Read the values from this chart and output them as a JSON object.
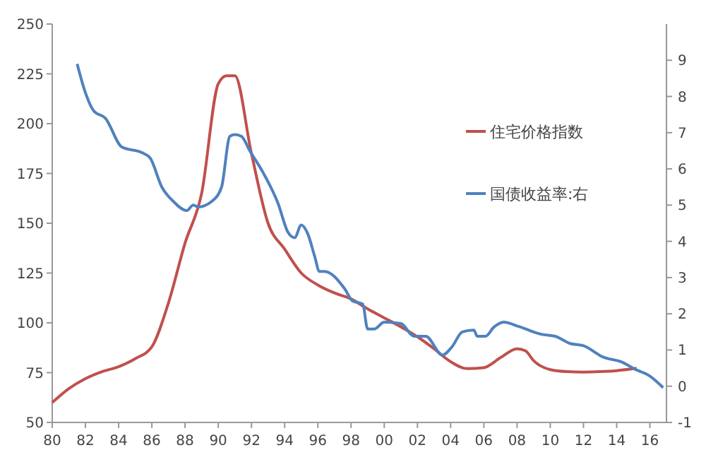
{
  "chart_data": {
    "type": "line",
    "xlim": [
      1980,
      2017
    ],
    "xticks": [
      {
        "value": 1980,
        "label": "80"
      },
      {
        "value": 1982,
        "label": "82"
      },
      {
        "value": 1984,
        "label": "84"
      },
      {
        "value": 1986,
        "label": "86"
      },
      {
        "value": 1988,
        "label": "88"
      },
      {
        "value": 1990,
        "label": "90"
      },
      {
        "value": 1992,
        "label": "92"
      },
      {
        "value": 1994,
        "label": "94"
      },
      {
        "value": 1996,
        "label": "96"
      },
      {
        "value": 1998,
        "label": "98"
      },
      {
        "value": 2000,
        "label": "00"
      },
      {
        "value": 2002,
        "label": "02"
      },
      {
        "value": 2004,
        "label": "04"
      },
      {
        "value": 2006,
        "label": "06"
      },
      {
        "value": 2008,
        "label": "08"
      },
      {
        "value": 2010,
        "label": "10"
      },
      {
        "value": 2012,
        "label": "12"
      },
      {
        "value": 2014,
        "label": "14"
      },
      {
        "value": 2016,
        "label": "16"
      }
    ],
    "ylim": [
      50,
      250
    ],
    "yticks": [
      50,
      75,
      100,
      125,
      150,
      175,
      200,
      225,
      250
    ],
    "y2lim": [
      -1,
      10
    ],
    "y2ticks": [
      -1,
      0,
      1,
      2,
      3,
      4,
      5,
      6,
      7,
      8,
      9
    ],
    "grid": false,
    "legend": "right",
    "marker": "none",
    "line_style": "solid",
    "series": [
      {
        "name": "住宅价格指数",
        "color": "#c0504d",
        "x": [
          1980,
          1981,
          1982,
          1983,
          1984,
          1985,
          1986,
          1987,
          1988,
          1989,
          1990,
          1990.5,
          1991,
          1992,
          1993,
          1994,
          1995,
          1996,
          1997,
          1998,
          1999,
          2000,
          2001,
          2002,
          2003,
          2004,
          2005,
          2006,
          2007,
          2008,
          2008.5,
          2009,
          2010,
          2011,
          2012,
          2013,
          2014,
          2015.2
        ],
        "values": [
          60,
          67,
          72,
          75.5,
          78,
          82,
          88,
          110,
          140,
          165,
          220,
          224,
          224,
          185,
          150,
          137,
          125,
          119,
          115,
          112,
          107,
          102.5,
          98,
          93,
          87,
          80.5,
          77,
          77.5,
          82.5,
          87,
          86,
          81,
          76.5,
          75.5,
          75.3,
          75.5,
          76,
          77.2
        ]
      },
      {
        "name": "国债收益率:右",
        "color": "#4f81bd",
        "axis": "y2",
        "x": [
          1981.5,
          1982,
          1982.5,
          1983.2,
          1984.2,
          1985.4,
          1985.9,
          1986.6,
          1987.3,
          1988.1,
          1988.5,
          1988.8,
          1989.6,
          1990.2,
          1990.7,
          1991,
          1991.4,
          1991.9,
          1992.7,
          1993.6,
          1994.2,
          1994.6,
          1995,
          1995.4,
          1995.8,
          1996.1,
          1996.4,
          1997.6,
          1998.1,
          1998.7,
          1999,
          1999.4,
          2000,
          2001,
          2001.8,
          2002.5,
          2003.5,
          2004.1,
          2004.7,
          2005.4,
          2005.6,
          2006.1,
          2006.6,
          2007.2,
          2008.1,
          2009.5,
          2010.3,
          2011.2,
          2012,
          2013.2,
          2014.3,
          2015.1,
          2016,
          2016.8
        ],
        "values": [
          8.9,
          8.1,
          7.6,
          7.4,
          6.6,
          6.45,
          6.3,
          5.5,
          5.1,
          4.85,
          5,
          4.95,
          5.1,
          5.5,
          6.9,
          6.95,
          6.9,
          6.5,
          5.9,
          5.05,
          4.25,
          4.1,
          4.45,
          4.2,
          3.6,
          3.17,
          3.17,
          2.7,
          2.35,
          2.27,
          1.58,
          1.58,
          1.77,
          1.73,
          1.38,
          1.38,
          0.86,
          1.1,
          1.5,
          1.55,
          1.38,
          1.38,
          1.63,
          1.77,
          1.65,
          1.43,
          1.38,
          1.18,
          1.12,
          0.8,
          0.67,
          0.47,
          0.28,
          -0.04
        ]
      }
    ]
  }
}
